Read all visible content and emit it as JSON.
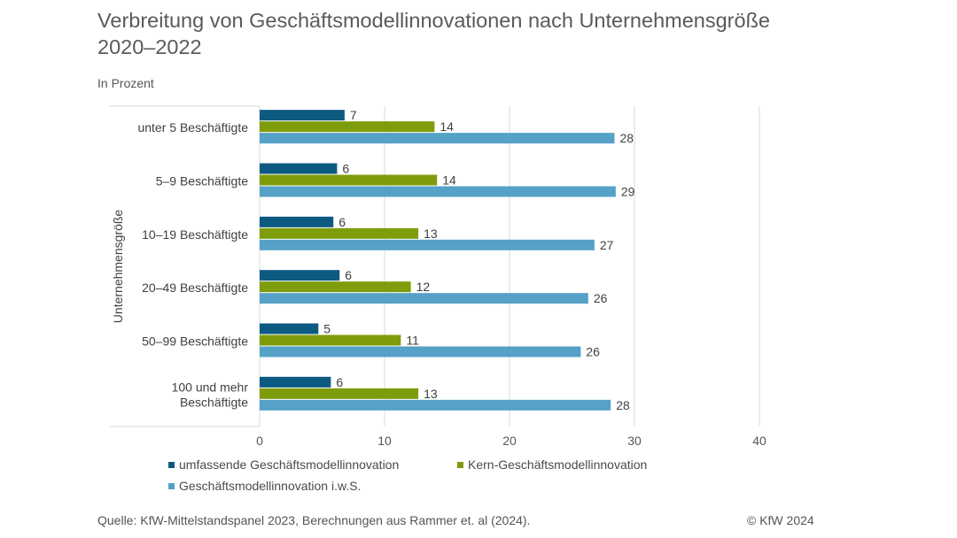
{
  "title_line1": "Verbreitung von Geschäftsmodellinnovationen nach Unternehmensgröße",
  "title_line2": "2020–2022",
  "subtitle": "In Prozent",
  "source": "Quelle: KfW-Mittelstandspanel 2023, Berechnungen aus Rammer et. al (2024).",
  "copyright": "© KfW 2024",
  "colors": {
    "umfassend": "#0d5a80",
    "kern": "#7f9c0a",
    "iws": "#55a1c8",
    "grid": "#d9d9d9",
    "text": "#404040"
  },
  "chart_data": {
    "type": "bar",
    "orientation": "horizontal",
    "title": "Verbreitung von Geschäftsmodellinnovationen nach Unternehmensgröße 2020–2022",
    "ylabel": "Unternehmensgröße",
    "xlabel": "",
    "xlim": [
      0,
      40
    ],
    "xticks": [
      0,
      10,
      20,
      30,
      40
    ],
    "categories": [
      [
        "unter 5 Beschäftigte"
      ],
      [
        "5–9 Beschäftigte"
      ],
      [
        "10–19 Beschäftigte"
      ],
      [
        "20–49 Beschäftigte"
      ],
      [
        "50–99 Beschäftigte"
      ],
      [
        "100 und mehr",
        "Beschäftigte"
      ]
    ],
    "series": [
      {
        "name": "umfassende Geschäftsmodellinnovation",
        "color_key": "umfassend",
        "values": [
          6.8,
          6.2,
          5.9,
          6.4,
          4.7,
          5.7
        ],
        "labels": [
          "7",
          "6",
          "6",
          "6",
          "5",
          "6"
        ]
      },
      {
        "name": "Kern-Geschäftsmodellinnovation",
        "color_key": "kern",
        "values": [
          14.0,
          14.2,
          12.7,
          12.1,
          11.3,
          12.7
        ],
        "labels": [
          "14",
          "14",
          "13",
          "12",
          "11",
          "13"
        ]
      },
      {
        "name": "Geschäftsmodellinnovation i.w.S.",
        "color_key": "iws",
        "values": [
          28.4,
          28.5,
          26.8,
          26.3,
          25.7,
          28.1
        ],
        "labels": [
          "28",
          "29",
          "27",
          "26",
          "26",
          "28"
        ]
      }
    ],
    "legend_position": "bottom"
  }
}
